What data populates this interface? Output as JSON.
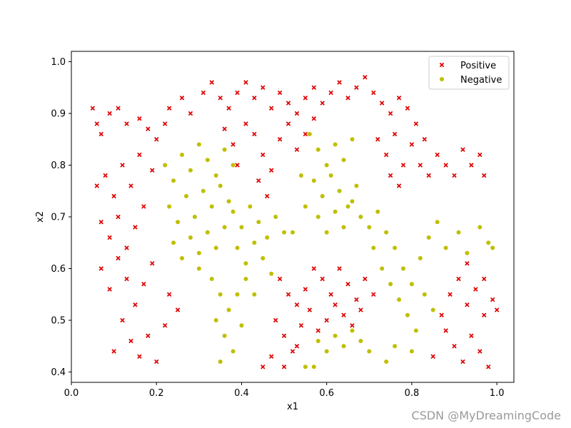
{
  "chart_data": {
    "type": "scatter",
    "title": "",
    "xlabel": "x1",
    "ylabel": "x2",
    "xlim": [
      0.0,
      1.04
    ],
    "ylim": [
      0.38,
      1.02
    ],
    "xticks": [
      "0.0",
      "0.2",
      "0.4",
      "0.6",
      "0.8",
      "1.0"
    ],
    "yticks": [
      "0.4",
      "0.5",
      "0.6",
      "0.7",
      "0.8",
      "0.9",
      "1.0"
    ],
    "legend_position": "top-right",
    "grid": false,
    "series": [
      {
        "name": "Positive",
        "marker": "x",
        "color": "#e00000",
        "points": [
          [
            0.05,
            0.91
          ],
          [
            0.06,
            0.88
          ],
          [
            0.07,
            0.86
          ],
          [
            0.09,
            0.9
          ],
          [
            0.11,
            0.91
          ],
          [
            0.13,
            0.88
          ],
          [
            0.16,
            0.89
          ],
          [
            0.18,
            0.87
          ],
          [
            0.06,
            0.76
          ],
          [
            0.08,
            0.78
          ],
          [
            0.1,
            0.74
          ],
          [
            0.12,
            0.8
          ],
          [
            0.14,
            0.76
          ],
          [
            0.16,
            0.82
          ],
          [
            0.19,
            0.79
          ],
          [
            0.07,
            0.69
          ],
          [
            0.09,
            0.66
          ],
          [
            0.11,
            0.7
          ],
          [
            0.13,
            0.64
          ],
          [
            0.15,
            0.68
          ],
          [
            0.17,
            0.72
          ],
          [
            0.07,
            0.6
          ],
          [
            0.09,
            0.56
          ],
          [
            0.11,
            0.62
          ],
          [
            0.13,
            0.58
          ],
          [
            0.15,
            0.53
          ],
          [
            0.17,
            0.57
          ],
          [
            0.19,
            0.61
          ],
          [
            0.12,
            0.5
          ],
          [
            0.14,
            0.46
          ],
          [
            0.16,
            0.43
          ],
          [
            0.18,
            0.47
          ],
          [
            0.2,
            0.42
          ],
          [
            0.22,
            0.49
          ],
          [
            0.23,
            0.55
          ],
          [
            0.25,
            0.52
          ],
          [
            0.1,
            0.44
          ],
          [
            0.2,
            0.85
          ],
          [
            0.22,
            0.88
          ],
          [
            0.23,
            0.91
          ],
          [
            0.26,
            0.93
          ],
          [
            0.28,
            0.9
          ],
          [
            0.31,
            0.94
          ],
          [
            0.33,
            0.96
          ],
          [
            0.35,
            0.93
          ],
          [
            0.37,
            0.91
          ],
          [
            0.39,
            0.94
          ],
          [
            0.41,
            0.96
          ],
          [
            0.43,
            0.93
          ],
          [
            0.45,
            0.95
          ],
          [
            0.47,
            0.91
          ],
          [
            0.49,
            0.94
          ],
          [
            0.51,
            0.92
          ],
          [
            0.53,
            0.9
          ],
          [
            0.55,
            0.93
          ],
          [
            0.57,
            0.95
          ],
          [
            0.59,
            0.92
          ],
          [
            0.61,
            0.94
          ],
          [
            0.63,
            0.96
          ],
          [
            0.65,
            0.93
          ],
          [
            0.67,
            0.95
          ],
          [
            0.69,
            0.97
          ],
          [
            0.71,
            0.94
          ],
          [
            0.73,
            0.92
          ],
          [
            0.75,
            0.9
          ],
          [
            0.77,
            0.93
          ],
          [
            0.79,
            0.91
          ],
          [
            0.81,
            0.88
          ],
          [
            0.83,
            0.85
          ],
          [
            0.36,
            0.87
          ],
          [
            0.38,
            0.84
          ],
          [
            0.41,
            0.88
          ],
          [
            0.43,
            0.86
          ],
          [
            0.45,
            0.82
          ],
          [
            0.47,
            0.79
          ],
          [
            0.49,
            0.85
          ],
          [
            0.51,
            0.88
          ],
          [
            0.53,
            0.83
          ],
          [
            0.55,
            0.86
          ],
          [
            0.57,
            0.89
          ],
          [
            0.44,
            0.77
          ],
          [
            0.46,
            0.74
          ],
          [
            0.39,
            0.8
          ],
          [
            0.72,
            0.85
          ],
          [
            0.74,
            0.82
          ],
          [
            0.76,
            0.86
          ],
          [
            0.78,
            0.8
          ],
          [
            0.8,
            0.84
          ],
          [
            0.82,
            0.8
          ],
          [
            0.84,
            0.78
          ],
          [
            0.86,
            0.82
          ],
          [
            0.88,
            0.8
          ],
          [
            0.9,
            0.78
          ],
          [
            0.92,
            0.83
          ],
          [
            0.94,
            0.8
          ],
          [
            0.96,
            0.82
          ],
          [
            0.97,
            0.78
          ],
          [
            0.75,
            0.78
          ],
          [
            0.77,
            0.76
          ],
          [
            0.49,
            0.58
          ],
          [
            0.51,
            0.55
          ],
          [
            0.53,
            0.53
          ],
          [
            0.55,
            0.56
          ],
          [
            0.57,
            0.6
          ],
          [
            0.59,
            0.58
          ],
          [
            0.61,
            0.55
          ],
          [
            0.63,
            0.6
          ],
          [
            0.65,
            0.57
          ],
          [
            0.67,
            0.54
          ],
          [
            0.69,
            0.58
          ],
          [
            0.71,
            0.55
          ],
          [
            0.48,
            0.5
          ],
          [
            0.5,
            0.47
          ],
          [
            0.52,
            0.44
          ],
          [
            0.54,
            0.49
          ],
          [
            0.56,
            0.52
          ],
          [
            0.58,
            0.48
          ],
          [
            0.6,
            0.5
          ],
          [
            0.62,
            0.53
          ],
          [
            0.64,
            0.51
          ],
          [
            0.66,
            0.49
          ],
          [
            0.68,
            0.52
          ],
          [
            0.45,
            0.41
          ],
          [
            0.47,
            0.43
          ],
          [
            0.5,
            0.41
          ],
          [
            0.53,
            0.45
          ],
          [
            0.89,
            0.55
          ],
          [
            0.91,
            0.58
          ],
          [
            0.93,
            0.53
          ],
          [
            0.95,
            0.56
          ],
          [
            0.97,
            0.51
          ],
          [
            0.99,
            0.54
          ],
          [
            0.88,
            0.48
          ],
          [
            0.9,
            0.45
          ],
          [
            0.92,
            0.42
          ],
          [
            0.94,
            0.47
          ],
          [
            0.96,
            0.44
          ],
          [
            0.98,
            0.41
          ],
          [
            1.0,
            0.52
          ],
          [
            0.87,
            0.51
          ],
          [
            0.85,
            0.43
          ],
          [
            0.93,
            0.61
          ],
          [
            0.97,
            0.58
          ]
        ]
      },
      {
        "name": "Negative",
        "marker": "o",
        "color": "#bfbf00",
        "points": [
          [
            0.22,
            0.8
          ],
          [
            0.24,
            0.77
          ],
          [
            0.26,
            0.82
          ],
          [
            0.28,
            0.79
          ],
          [
            0.3,
            0.84
          ],
          [
            0.32,
            0.81
          ],
          [
            0.34,
            0.78
          ],
          [
            0.36,
            0.83
          ],
          [
            0.38,
            0.8
          ],
          [
            0.23,
            0.72
          ],
          [
            0.25,
            0.69
          ],
          [
            0.27,
            0.74
          ],
          [
            0.29,
            0.7
          ],
          [
            0.31,
            0.75
          ],
          [
            0.33,
            0.72
          ],
          [
            0.35,
            0.76
          ],
          [
            0.37,
            0.73
          ],
          [
            0.24,
            0.65
          ],
          [
            0.26,
            0.62
          ],
          [
            0.28,
            0.66
          ],
          [
            0.3,
            0.63
          ],
          [
            0.32,
            0.67
          ],
          [
            0.34,
            0.64
          ],
          [
            0.36,
            0.68
          ],
          [
            0.38,
            0.71
          ],
          [
            0.4,
            0.68
          ],
          [
            0.42,
            0.72
          ],
          [
            0.44,
            0.69
          ],
          [
            0.46,
            0.66
          ],
          [
            0.48,
            0.7
          ],
          [
            0.5,
            0.67
          ],
          [
            0.39,
            0.64
          ],
          [
            0.41,
            0.61
          ],
          [
            0.43,
            0.65
          ],
          [
            0.45,
            0.62
          ],
          [
            0.47,
            0.59
          ],
          [
            0.33,
            0.58
          ],
          [
            0.35,
            0.55
          ],
          [
            0.37,
            0.52
          ],
          [
            0.34,
            0.5
          ],
          [
            0.36,
            0.47
          ],
          [
            0.38,
            0.44
          ],
          [
            0.4,
            0.49
          ],
          [
            0.35,
            0.42
          ],
          [
            0.39,
            0.55
          ],
          [
            0.41,
            0.58
          ],
          [
            0.3,
            0.6
          ],
          [
            0.43,
            0.55
          ],
          [
            0.56,
            0.86
          ],
          [
            0.58,
            0.83
          ],
          [
            0.6,
            0.8
          ],
          [
            0.62,
            0.84
          ],
          [
            0.64,
            0.81
          ],
          [
            0.66,
            0.85
          ],
          [
            0.57,
            0.77
          ],
          [
            0.59,
            0.74
          ],
          [
            0.61,
            0.78
          ],
          [
            0.63,
            0.75
          ],
          [
            0.65,
            0.72
          ],
          [
            0.67,
            0.76
          ],
          [
            0.58,
            0.7
          ],
          [
            0.6,
            0.67
          ],
          [
            0.62,
            0.71
          ],
          [
            0.64,
            0.68
          ],
          [
            0.66,
            0.73
          ],
          [
            0.68,
            0.7
          ],
          [
            0.55,
            0.72
          ],
          [
            0.54,
            0.78
          ],
          [
            0.7,
            0.68
          ],
          [
            0.72,
            0.71
          ],
          [
            0.74,
            0.67
          ],
          [
            0.76,
            0.64
          ],
          [
            0.71,
            0.64
          ],
          [
            0.73,
            0.6
          ],
          [
            0.75,
            0.57
          ],
          [
            0.77,
            0.54
          ],
          [
            0.79,
            0.51
          ],
          [
            0.81,
            0.48
          ],
          [
            0.78,
            0.6
          ],
          [
            0.8,
            0.57
          ],
          [
            0.82,
            0.62
          ],
          [
            0.84,
            0.66
          ],
          [
            0.86,
            0.69
          ],
          [
            0.88,
            0.64
          ],
          [
            0.91,
            0.67
          ],
          [
            0.93,
            0.63
          ],
          [
            0.96,
            0.68
          ],
          [
            0.98,
            0.65
          ],
          [
            0.99,
            0.64
          ],
          [
            0.83,
            0.55
          ],
          [
            0.85,
            0.52
          ],
          [
            0.8,
            0.44
          ],
          [
            0.76,
            0.45
          ],
          [
            0.74,
            0.42
          ],
          [
            0.58,
            0.46
          ],
          [
            0.6,
            0.44
          ],
          [
            0.62,
            0.47
          ],
          [
            0.64,
            0.45
          ],
          [
            0.66,
            0.48
          ],
          [
            0.68,
            0.46
          ],
          [
            0.7,
            0.44
          ],
          [
            0.57,
            0.41
          ],
          [
            0.55,
            0.41
          ],
          [
            0.52,
            0.67
          ]
        ]
      }
    ]
  },
  "watermark": "CSDN @MyDreamingCode"
}
